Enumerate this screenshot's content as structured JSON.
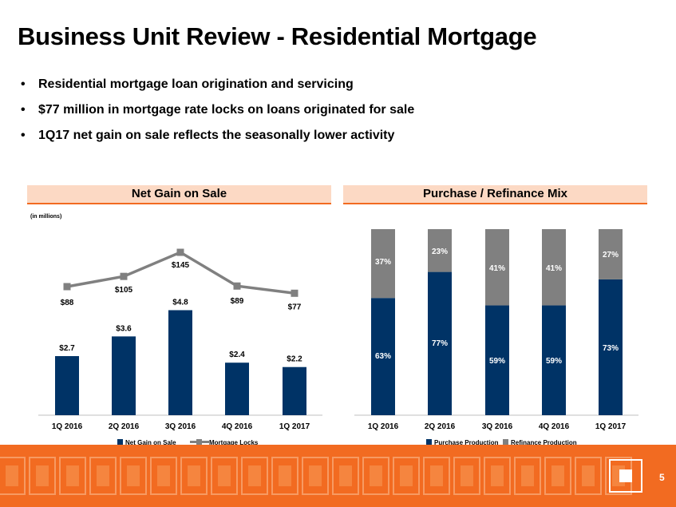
{
  "title": "Business Unit Review - Residential Mortgage",
  "bullets": [
    "Residential mortgage loan origination and servicing",
    "$77 million in mortgage rate locks on loans originated for sale",
    "1Q17 net gain on sale reflects the seasonally lower activity"
  ],
  "bullet_glyph": "•",
  "page_number": "5",
  "colors": {
    "navy": "#003366",
    "gray": "#808080",
    "orange": "#f26b21",
    "header_fill": "#fcd9c4"
  },
  "chart_data": [
    {
      "type": "bar",
      "title": "Net Gain on Sale",
      "units_note": "(in millions)",
      "categories": [
        "1Q 2016",
        "2Q 2016",
        "3Q 2016",
        "4Q 2016",
        "1Q 2017"
      ],
      "series": [
        {
          "name": "Net Gain on Sale",
          "kind": "bar",
          "color": "#003366",
          "values": [
            2.7,
            3.6,
            4.8,
            2.4,
            2.2
          ],
          "labels": [
            "$2.7",
            "$3.6",
            "$4.8",
            "$2.4",
            "$2.2"
          ]
        },
        {
          "name": "Mortgage Locks",
          "kind": "line",
          "color": "#808080",
          "values": [
            88,
            105,
            145,
            89,
            77
          ],
          "labels": [
            "$88",
            "$105",
            "$145",
            "$89",
            "$77"
          ]
        }
      ],
      "legend": "bottom",
      "grid": false
    },
    {
      "type": "bar",
      "stacked": true,
      "title": "Purchase / Refinance Mix",
      "categories": [
        "1Q 2016",
        "2Q 2016",
        "3Q 2016",
        "4Q 2016",
        "1Q 2017"
      ],
      "series": [
        {
          "name": "Purchase Production",
          "color": "#003366",
          "values": [
            63,
            77,
            59,
            59,
            73
          ],
          "labels": [
            "63%",
            "77%",
            "59%",
            "59%",
            "73%"
          ]
        },
        {
          "name": "Refinance Production",
          "color": "#808080",
          "values": [
            37,
            23,
            41,
            41,
            27
          ],
          "labels": [
            "37%",
            "23%",
            "41%",
            "41%",
            "27%"
          ]
        }
      ],
      "legend": "bottom",
      "grid": false
    }
  ]
}
